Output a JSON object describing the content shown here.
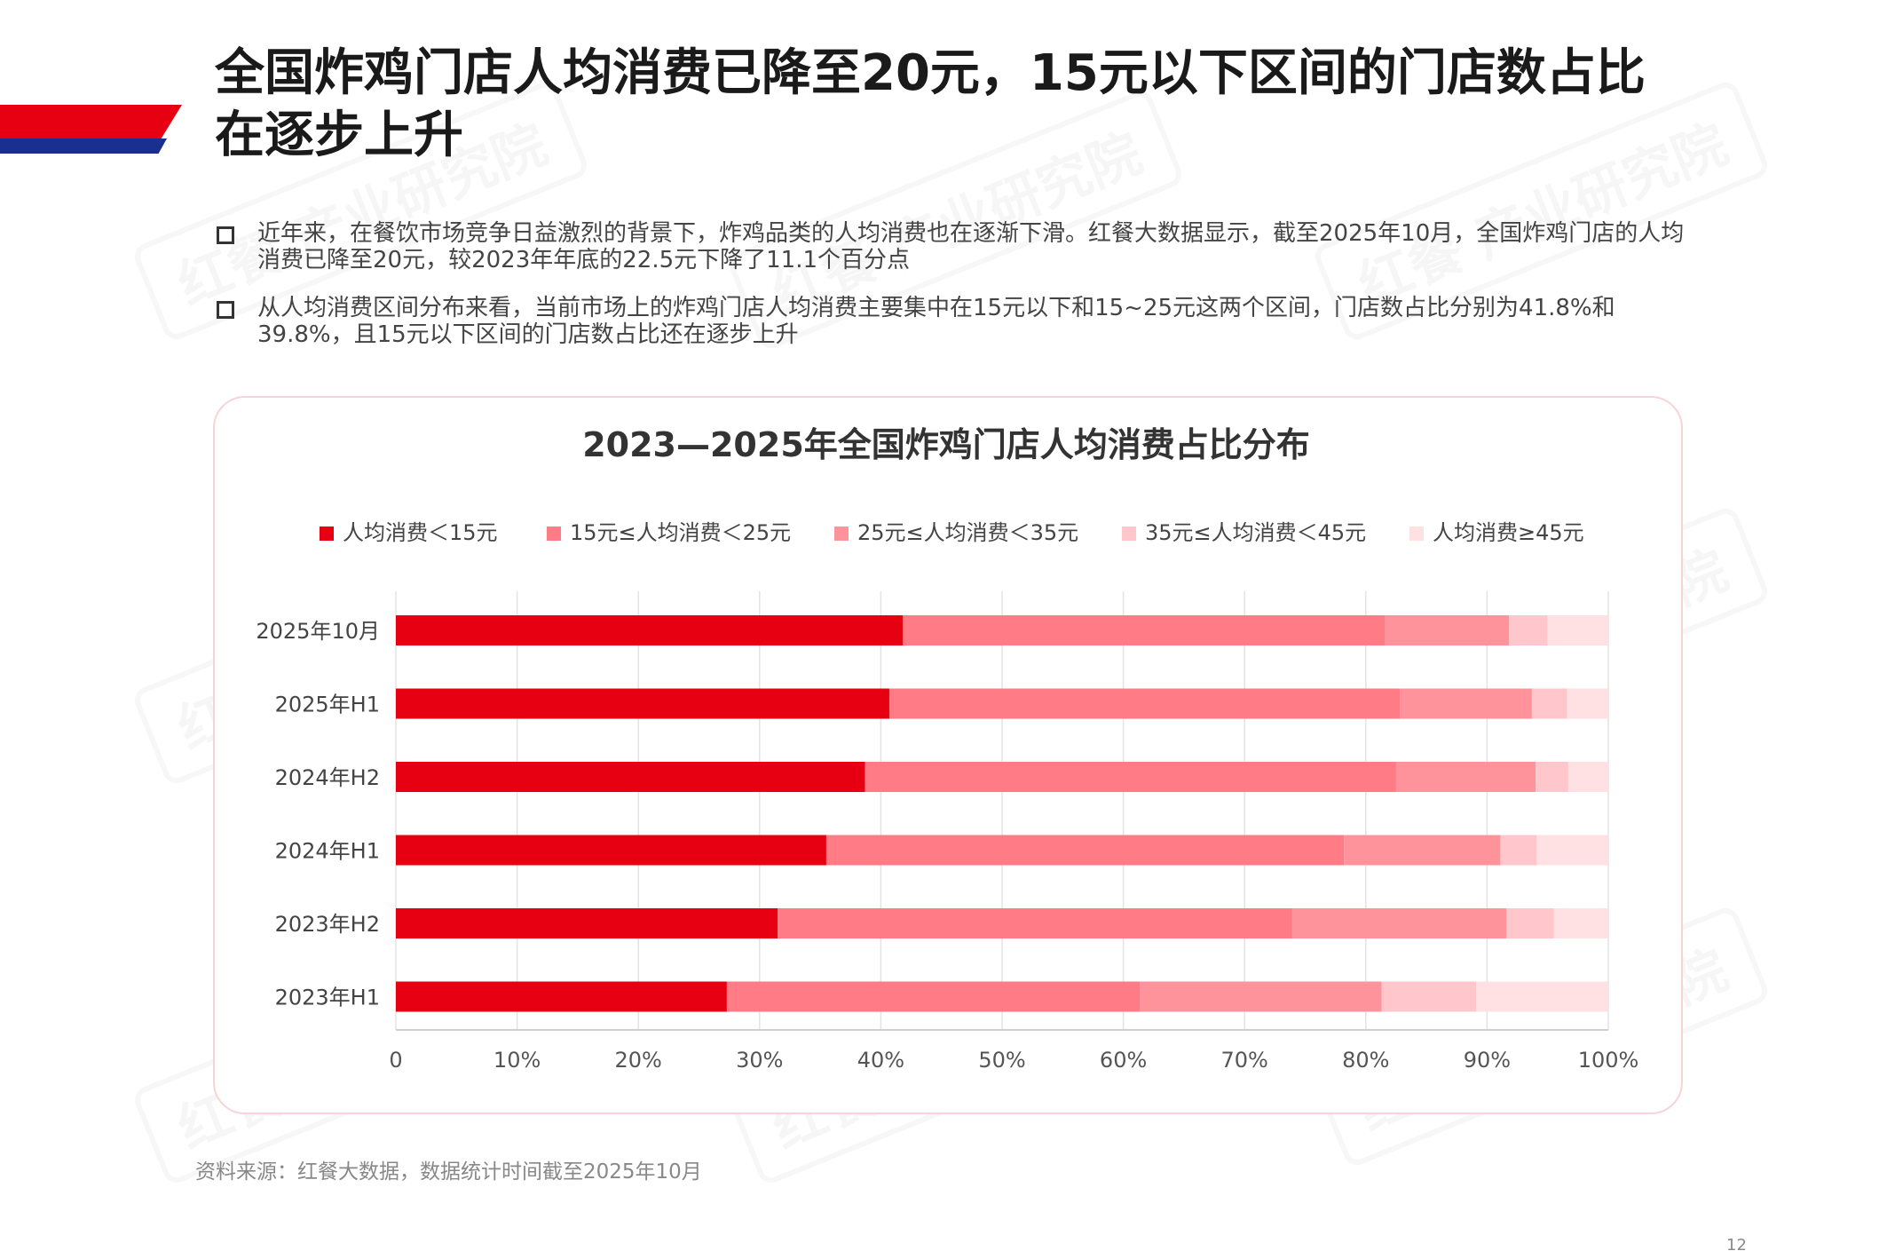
{
  "page": {
    "title": "全国炸鸡门店人均消费已降至20元，15元以下区间的门店数占比在逐步上升",
    "bullets": [
      "近年来，在餐饮市场竞争日益激烈的背景下，炸鸡品类的人均消费也在逐渐下滑。红餐大数据显示，截至2025年10月，全国炸鸡门店的人均消费已降至20元，较2023年年底的22.5元下降了11.1个百分点",
      "从人均消费区间分布来看，当前市场上的炸鸡门店人均消费主要集中在15元以下和15~25元这两个区间，门店数占比分别为41.8%和39.8%，且15元以下区间的门店数占比还在逐步上升"
    ],
    "source": "资料来源：红餐大数据，数据统计时间截至2025年10月",
    "page_number": "12",
    "watermark": "红餐 产业研究院"
  },
  "colors": {
    "accent_red": "#e60012",
    "accent_blue": "#1a2f8f"
  },
  "chart_data": {
    "type": "bar",
    "orientation": "horizontal",
    "stacked": true,
    "title": "2023—2025年全国炸鸡门店人均消费占比分布",
    "categories": [
      "2025年10月",
      "2025年H1",
      "2024年H2",
      "2024年H1",
      "2023年H2",
      "2023年H1"
    ],
    "series": [
      {
        "name": "人均消费＜15元",
        "color": "#e60012",
        "values": [
          41.8,
          40.7,
          38.7,
          35.5,
          31.5,
          27.3
        ]
      },
      {
        "name": "15元≤人均消费＜25元",
        "color": "#ff7b86",
        "values": [
          39.8,
          42.1,
          43.8,
          42.7,
          42.4,
          34.1
        ]
      },
      {
        "name": "25元≤人均消费＜35元",
        "color": "#ff939c",
        "values": [
          10.2,
          10.9,
          11.5,
          12.9,
          17.7,
          19.9
        ]
      },
      {
        "name": "35元≤人均消费＜45元",
        "color": "#ffc7cc",
        "values": [
          3.2,
          2.9,
          2.7,
          3.0,
          3.9,
          7.8
        ]
      },
      {
        "name": "人均消费≥45元",
        "color": "#ffe1e4",
        "values": [
          5.0,
          3.4,
          3.3,
          5.9,
          4.5,
          10.9
        ]
      }
    ],
    "xlim": [
      0,
      100
    ],
    "xticks": [
      "0",
      "10%",
      "20%",
      "30%",
      "40%",
      "50%",
      "60%",
      "70%",
      "80%",
      "90%",
      "100%"
    ],
    "grid": true,
    "legend_position": "top"
  }
}
